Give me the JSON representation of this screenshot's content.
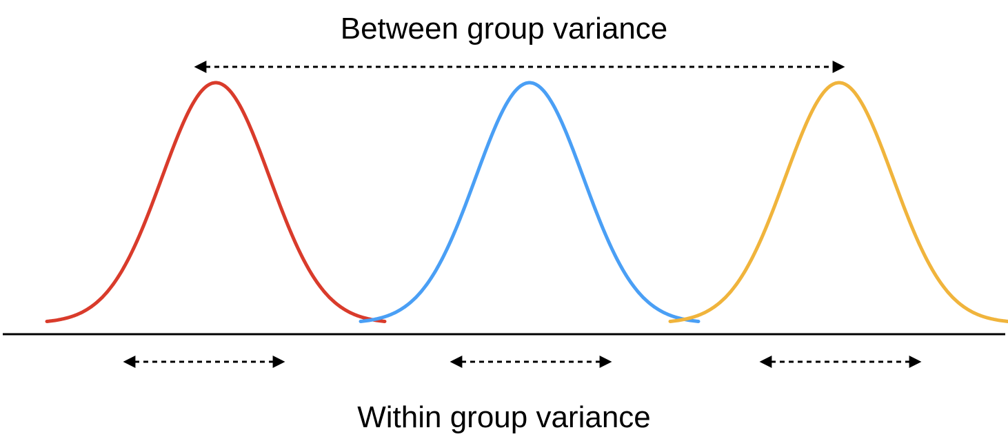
{
  "labels": {
    "between": "Between group variance",
    "within": "Within group variance"
  },
  "groups": [
    {
      "name": "red-group",
      "color": "#D93B2B"
    },
    {
      "name": "blue-group",
      "color": "#4A9FF5"
    },
    {
      "name": "yellow-group",
      "color": "#F0B43C"
    }
  ],
  "colors": {
    "axis": "#000000",
    "arrow": "#000000"
  }
}
